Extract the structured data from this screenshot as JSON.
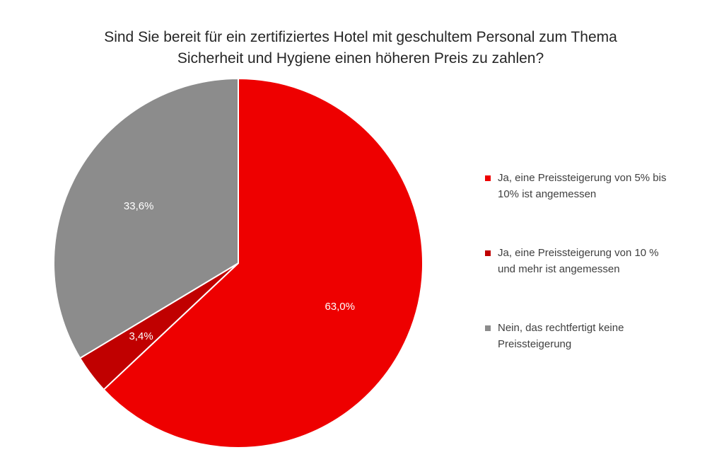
{
  "chart_data": {
    "type": "pie",
    "title_lines": [
      "Sind Sie bereit für ein zertifiziertes Hotel mit geschultem Personal zum Thema",
      "Sicherheit und Hygiene einen höheren Preis zu zahlen?"
    ],
    "slices": [
      {
        "name": "Ja, eine Preissteigerung von 5% bis 10% ist angemessen",
        "legend_lines": [
          "Ja, eine Preissteigerung von 5% bis",
          "10% ist angemessen"
        ],
        "value": 63.0,
        "label": "63,0%",
        "color": "#EE0000"
      },
      {
        "name": "Ja, eine Preissteigerung von 10 % und mehr ist angemessen",
        "legend_lines": [
          "Ja, eine Preissteigerung von 10 %",
          "und mehr ist angemessen"
        ],
        "value": 3.4,
        "label": "3,4%",
        "color": "#C00000"
      },
      {
        "name": "Nein, das rechtfertigt keine Preissteigerung",
        "legend_lines": [
          "Nein, das rechtfertigt keine",
          "Preissteigerung"
        ],
        "value": 33.6,
        "label": "33,6%",
        "color": "#8C8C8C"
      }
    ],
    "start_angle": "12 o'clock",
    "direction": "clockwise",
    "legend_position": "right"
  }
}
